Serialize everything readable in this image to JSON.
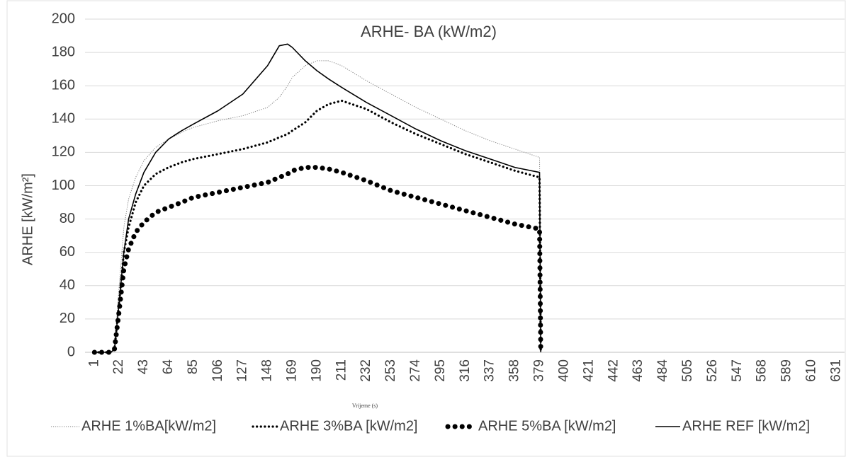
{
  "chart_data": {
    "type": "line",
    "title": "ARHE- BA (kW/m2)",
    "x_label": "Vrijeme (s)",
    "y_label": "ARHE  [kW/m²]",
    "x": [
      1,
      10,
      15,
      18,
      22,
      26,
      30,
      36,
      43,
      53,
      64,
      75,
      85,
      106,
      127,
      148,
      158,
      165,
      169,
      180,
      190,
      200,
      211,
      232,
      253,
      274,
      295,
      316,
      337,
      358,
      379,
      380
    ],
    "series": [
      {
        "name": "ARHE 1%BA[kW/m2]",
        "color": "#7f7f7f",
        "line_style": "fine-dotted",
        "values": [
          0,
          0,
          0,
          2,
          40,
          75,
          92,
          105,
          115,
          123,
          128,
          132,
          135,
          139,
          142,
          147,
          153,
          160,
          165,
          172,
          175,
          175,
          172,
          163,
          155,
          147,
          140,
          133,
          127,
          122,
          117,
          0
        ]
      },
      {
        "name": "ARHE 3%BA [kW/m2]",
        "color": "#000000",
        "line_style": "dotted",
        "values": [
          0,
          0,
          0,
          2,
          30,
          60,
          75,
          90,
          100,
          107,
          111,
          114,
          116,
          119,
          122,
          126,
          129,
          131,
          133,
          138,
          145,
          149,
          151,
          146,
          138,
          131,
          125,
          119,
          114,
          109,
          105,
          0
        ]
      },
      {
        "name": "ARHE 5%BA [kW/m2]",
        "color": "#000000",
        "line_style": "round-dotted",
        "values": [
          0,
          0,
          0,
          2,
          25,
          50,
          62,
          72,
          78,
          84,
          87,
          90,
          93,
          96,
          99,
          102,
          105,
          107,
          109,
          111,
          111,
          110,
          108,
          103,
          97,
          93,
          89,
          85,
          81,
          77,
          74,
          0
        ]
      },
      {
        "name": "ARHE REF [kW/m2]",
        "color": "#000000",
        "line_style": "solid",
        "values": [
          0,
          0,
          0,
          2,
          30,
          60,
          80,
          95,
          108,
          120,
          128,
          133,
          137,
          145,
          155,
          172,
          184,
          185,
          183,
          175,
          169,
          164,
          159,
          150,
          142,
          134,
          127,
          121,
          116,
          111,
          108,
          0
        ]
      }
    ],
    "xlim": [
      -7,
      638
    ],
    "xticks": [
      1,
      22,
      43,
      64,
      85,
      106,
      127,
      148,
      169,
      190,
      211,
      232,
      253,
      274,
      295,
      316,
      337,
      358,
      379,
      400,
      421,
      442,
      463,
      484,
      505,
      526,
      547,
      568,
      589,
      610,
      631
    ],
    "ylim": [
      0,
      200
    ],
    "yticks": [
      0,
      20,
      40,
      60,
      80,
      100,
      120,
      140,
      160,
      180,
      200
    ],
    "grid": true,
    "legend": "bottom"
  }
}
